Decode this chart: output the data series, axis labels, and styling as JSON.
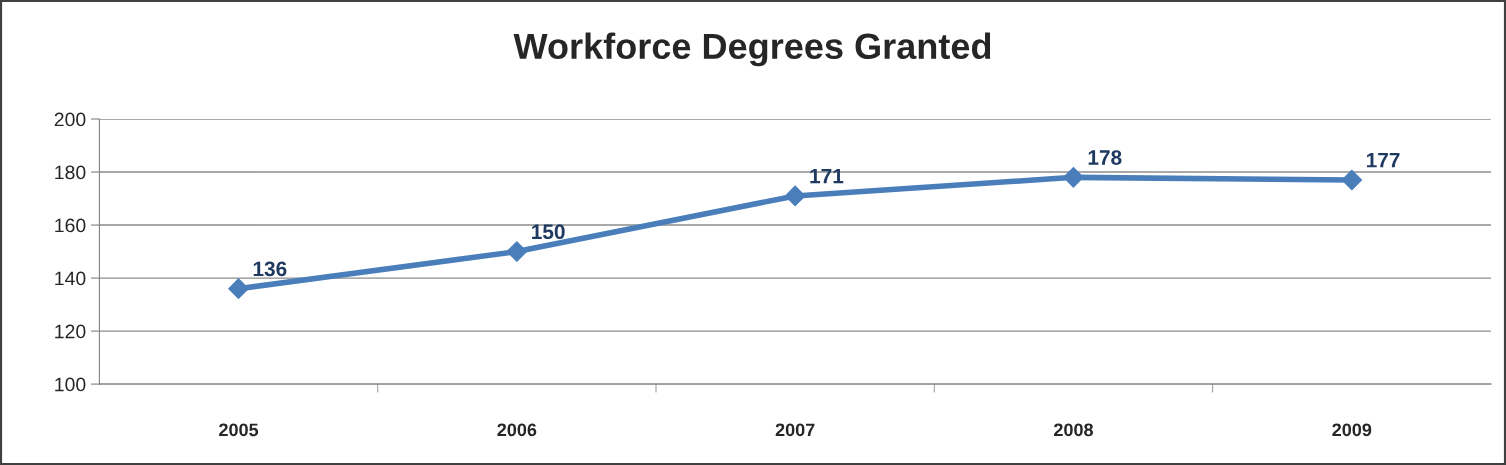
{
  "chart_data": {
    "type": "line",
    "title": "Workforce Degrees Granted",
    "categories": [
      "2005",
      "2006",
      "2007",
      "2008",
      "2009"
    ],
    "series": [
      {
        "color": "#4a7ebb",
        "values": [
          136,
          150,
          171,
          178,
          177
        ]
      }
    ],
    "ylim": [
      100,
      200
    ],
    "yticks": [
      100,
      120,
      140,
      160,
      180,
      200
    ],
    "grid": "y",
    "marker": "diamond",
    "line_style": "solid",
    "data_labels": true
  }
}
